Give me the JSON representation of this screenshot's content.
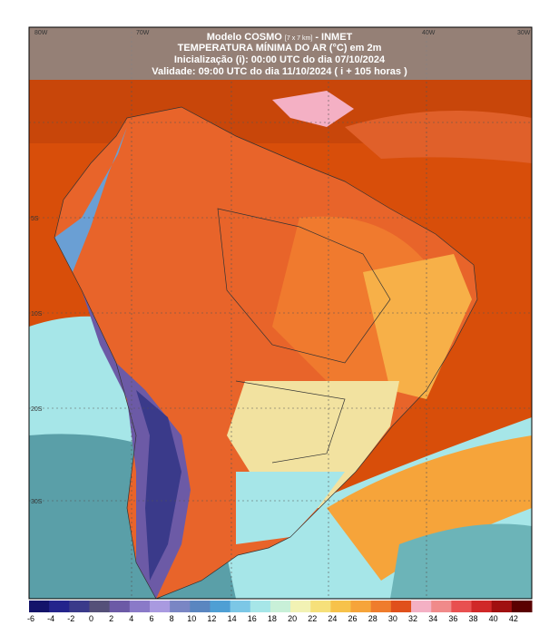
{
  "header": {
    "model": "Modelo COSMO",
    "resolution": "[7 x 7 km]",
    "source": "- INMET",
    "title": "TEMPERATURA MÍNIMA DO AR (°C) em 2m",
    "init": "Inicialização (i): 00:00 UTC do dia 07/10/2024",
    "valid": "Validade: 09:00 UTC do dia 11/10/2024 ( i + 105 horas )"
  },
  "grid_labels": {
    "top": [
      "80W",
      "70W",
      "40W",
      "30W"
    ],
    "left": [
      "5S",
      "10S",
      "20S",
      "30S"
    ]
  },
  "legend": {
    "labels": [
      -6,
      -4,
      -2,
      0,
      2,
      4,
      6,
      8,
      10,
      12,
      14,
      16,
      18,
      20,
      22,
      24,
      26,
      28,
      30,
      32,
      34,
      36,
      38,
      40,
      42
    ],
    "colors": [
      "#14146a",
      "#24248c",
      "#3a3a8a",
      "#555079",
      "#6c5aa6",
      "#8a7ac8",
      "#a99ae0",
      "#7a86c4",
      "#5a86c0",
      "#4f9fd4",
      "#7cc7e6",
      "#a6e6e8",
      "#c8f0d8",
      "#f2f2b4",
      "#f6e07a",
      "#f7c24a",
      "#f6a43a",
      "#ef7c2c",
      "#e0501c",
      "#f4b0c4",
      "#f08a8a",
      "#e85050",
      "#d02828",
      "#a01010",
      "#5a0000"
    ]
  }
}
